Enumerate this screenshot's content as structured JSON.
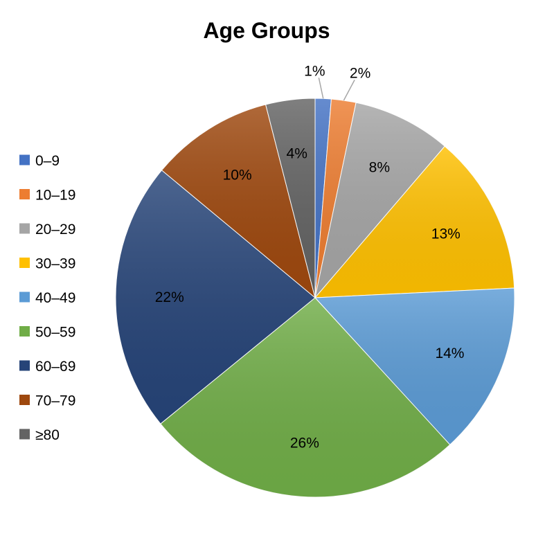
{
  "chart_data": {
    "type": "pie",
    "title": "Age Groups",
    "categories": [
      "0–9",
      "10–19",
      "20–29",
      "30–39",
      "40–49",
      "50–59",
      "60–69",
      "70–79",
      "≥80"
    ],
    "values": [
      1.3,
      2,
      8,
      13,
      14,
      26,
      22,
      10,
      4
    ],
    "labels": [
      "1%",
      "2%",
      "8%",
      "13%",
      "14%",
      "26%",
      "22%",
      "10%",
      "4%"
    ],
    "colors": [
      "#4472c4",
      "#ed7d31",
      "#a5a5a5",
      "#ffc000",
      "#5b9bd5",
      "#70ad47",
      "#264478",
      "#9e480e",
      "#636363"
    ],
    "legend_position": "left"
  }
}
